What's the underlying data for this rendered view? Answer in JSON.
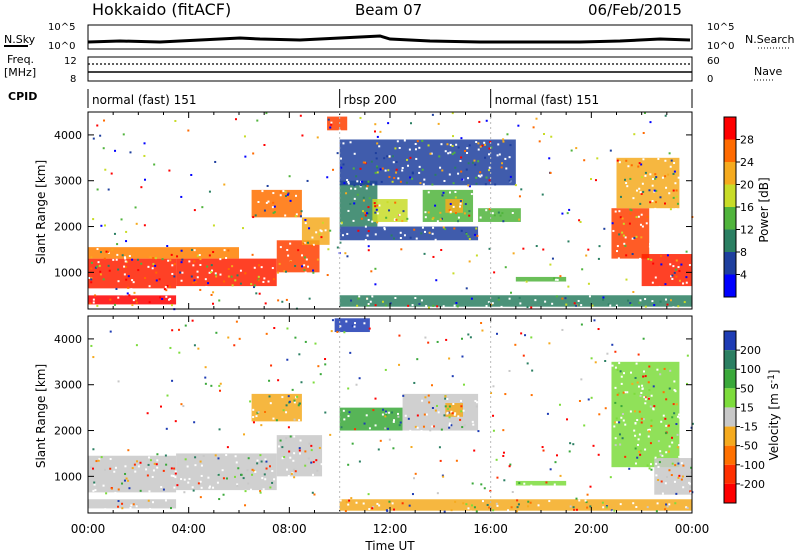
{
  "header": {
    "station": "Hokkaido (fitACF)",
    "beam": "Beam 07",
    "date": "06/Feb/2015"
  },
  "top_panels": {
    "nsky_label": "N.Sky",
    "nsky_ticks": [
      "10^5",
      "10^0"
    ],
    "nsearch_label": "N.Search",
    "nsearch_ticks": [
      "10^5",
      "10^0"
    ],
    "freq_label": "Freq.",
    "freq_unit": "[MHz]",
    "freq_ticks": [
      "12",
      "8"
    ],
    "nave_label": "Nave",
    "nave_ticks": [
      "60",
      "0"
    ],
    "cpid_label": "CPID",
    "cpid_segments": [
      {
        "label": "normal (fast) 151",
        "start_h": 0,
        "end_h": 10
      },
      {
        "label": "rbsp 200",
        "start_h": 10,
        "end_h": 16
      },
      {
        "label": "normal (fast) 151",
        "start_h": 16,
        "end_h": 24
      }
    ]
  },
  "chart_data": [
    {
      "type": "heatmap",
      "name": "power",
      "ylabel": "Slant Range [km]",
      "yticks": [
        "1000",
        "2000",
        "3000",
        "4000"
      ],
      "ylim": [
        200,
        4500
      ],
      "xlim": [
        0,
        24
      ],
      "colorbar_label": "Power [dB]",
      "colorbar_ticks": [
        "4",
        "8",
        "12",
        "16",
        "20",
        "24",
        "28"
      ],
      "colorbar_colors": [
        "#0000ff",
        "#1e3f9e",
        "#2b7f62",
        "#50b43c",
        "#c8dc28",
        "#f5aa1e",
        "#ff6a00",
        "#ff0000"
      ],
      "regions": [
        {
          "x0": 0,
          "x1": 3.5,
          "y0": 300,
          "y1": 500,
          "color": "#ff0000"
        },
        {
          "x0": 0,
          "x1": 3.5,
          "y0": 500,
          "y1": 650,
          "color": "#ffffff"
        },
        {
          "x0": 0,
          "x1": 3.5,
          "y0": 650,
          "y1": 1300,
          "color": "#ff2000"
        },
        {
          "x0": 0,
          "x1": 6.0,
          "y0": 1300,
          "y1": 1550,
          "color": "#ff8000"
        },
        {
          "x0": 3.5,
          "x1": 7.5,
          "y0": 700,
          "y1": 1300,
          "color": "#ff2000"
        },
        {
          "x0": 7.5,
          "x1": 9.2,
          "y0": 1000,
          "y1": 1700,
          "color": "#ff4000"
        },
        {
          "x0": 8.5,
          "x1": 9.6,
          "y0": 1600,
          "y1": 2200,
          "color": "#f5aa1e"
        },
        {
          "x0": 6.5,
          "x1": 8.5,
          "y0": 2200,
          "y1": 2800,
          "color": "#ff7000"
        },
        {
          "x0": 9.5,
          "x1": 10.3,
          "y0": 4100,
          "y1": 4400,
          "color": "#ff4000"
        },
        {
          "x0": 10.0,
          "x1": 11.5,
          "y0": 2000,
          "y1": 3000,
          "color": "#2b7f62"
        },
        {
          "x0": 11.3,
          "x1": 12.7,
          "y0": 2100,
          "y1": 2600,
          "color": "#c8dc28"
        },
        {
          "x0": 13.3,
          "x1": 15.3,
          "y0": 2100,
          "y1": 2800,
          "color": "#50b43c"
        },
        {
          "x0": 14.2,
          "x1": 14.9,
          "y0": 2300,
          "y1": 2600,
          "color": "#f5aa1e"
        },
        {
          "x0": 10.0,
          "x1": 15.5,
          "y0": 1700,
          "y1": 2000,
          "color": "#1e3f9e"
        },
        {
          "x0": 10.0,
          "x1": 17.0,
          "y0": 2900,
          "y1": 3900,
          "color": "#1e3f9e"
        },
        {
          "x0": 15.5,
          "x1": 17.2,
          "y0": 2100,
          "y1": 2400,
          "color": "#50b43c"
        },
        {
          "x0": 17.0,
          "x1": 19.0,
          "y0": 800,
          "y1": 900,
          "color": "#50b43c"
        },
        {
          "x0": 10.0,
          "x1": 24,
          "y0": 250,
          "y1": 500,
          "color": "#2b7f62"
        },
        {
          "x0": 20.8,
          "x1": 22.3,
          "y0": 1300,
          "y1": 2400,
          "color": "#ff4000"
        },
        {
          "x0": 22.0,
          "x1": 24,
          "y0": 700,
          "y1": 1400,
          "color": "#ff2000"
        },
        {
          "x0": 21.0,
          "x1": 23.5,
          "y0": 2400,
          "y1": 3500,
          "color": "#f5aa1e"
        }
      ]
    },
    {
      "type": "heatmap",
      "name": "velocity",
      "ylabel": "Slant Range [km]",
      "yticks": [
        "1000",
        "2000",
        "3000",
        "4000"
      ],
      "ylim": [
        200,
        4500
      ],
      "xlim": [
        0,
        24
      ],
      "xticks": [
        "00:00",
        "04:00",
        "08:00",
        "12:00",
        "16:00",
        "20:00",
        "00:00"
      ],
      "xlabel": "Time UT",
      "colorbar_label": "Velocity [m s^-1]",
      "colorbar_ticks": [
        "200",
        "100",
        "50",
        "15",
        "-15",
        "-50",
        "-100",
        "-200"
      ],
      "colorbar_colors": [
        "#1e3cb4",
        "#2b7f62",
        "#3aa83a",
        "#7ddc3c",
        "#c8c8c8",
        "#f5aa1e",
        "#ff7000",
        "#ff3000",
        "#ff0000"
      ],
      "regions": [
        {
          "x0": 0,
          "x1": 3.5,
          "y0": 300,
          "y1": 500,
          "color": "#c8c8c8"
        },
        {
          "x0": 0,
          "x1": 3.5,
          "y0": 650,
          "y1": 1450,
          "color": "#c8c8c8"
        },
        {
          "x0": 3.5,
          "x1": 7.5,
          "y0": 700,
          "y1": 1500,
          "color": "#c8c8c8"
        },
        {
          "x0": 7.5,
          "x1": 9.3,
          "y0": 1000,
          "y1": 1900,
          "color": "#c8c8c8"
        },
        {
          "x0": 6.5,
          "x1": 8.5,
          "y0": 2200,
          "y1": 2800,
          "color": "#f5aa1e"
        },
        {
          "x0": 9.8,
          "x1": 11.2,
          "y0": 4150,
          "y1": 4450,
          "color": "#1e3cb4"
        },
        {
          "x0": 10.0,
          "x1": 12.5,
          "y0": 2000,
          "y1": 2500,
          "color": "#3aa83a"
        },
        {
          "x0": 12.5,
          "x1": 15.5,
          "y0": 2000,
          "y1": 2800,
          "color": "#c8c8c8"
        },
        {
          "x0": 14.2,
          "x1": 14.9,
          "y0": 2300,
          "y1": 2600,
          "color": "#f5aa1e"
        },
        {
          "x0": 17.0,
          "x1": 19.0,
          "y0": 800,
          "y1": 900,
          "color": "#7ddc3c"
        },
        {
          "x0": 10.0,
          "x1": 24,
          "y0": 250,
          "y1": 500,
          "color": "#f5aa1e"
        },
        {
          "x0": 20.8,
          "x1": 23.5,
          "y0": 1200,
          "y1": 3500,
          "color": "#7ddc3c"
        },
        {
          "x0": 22.5,
          "x1": 24,
          "y0": 600,
          "y1": 1400,
          "color": "#c8c8c8"
        }
      ]
    }
  ]
}
